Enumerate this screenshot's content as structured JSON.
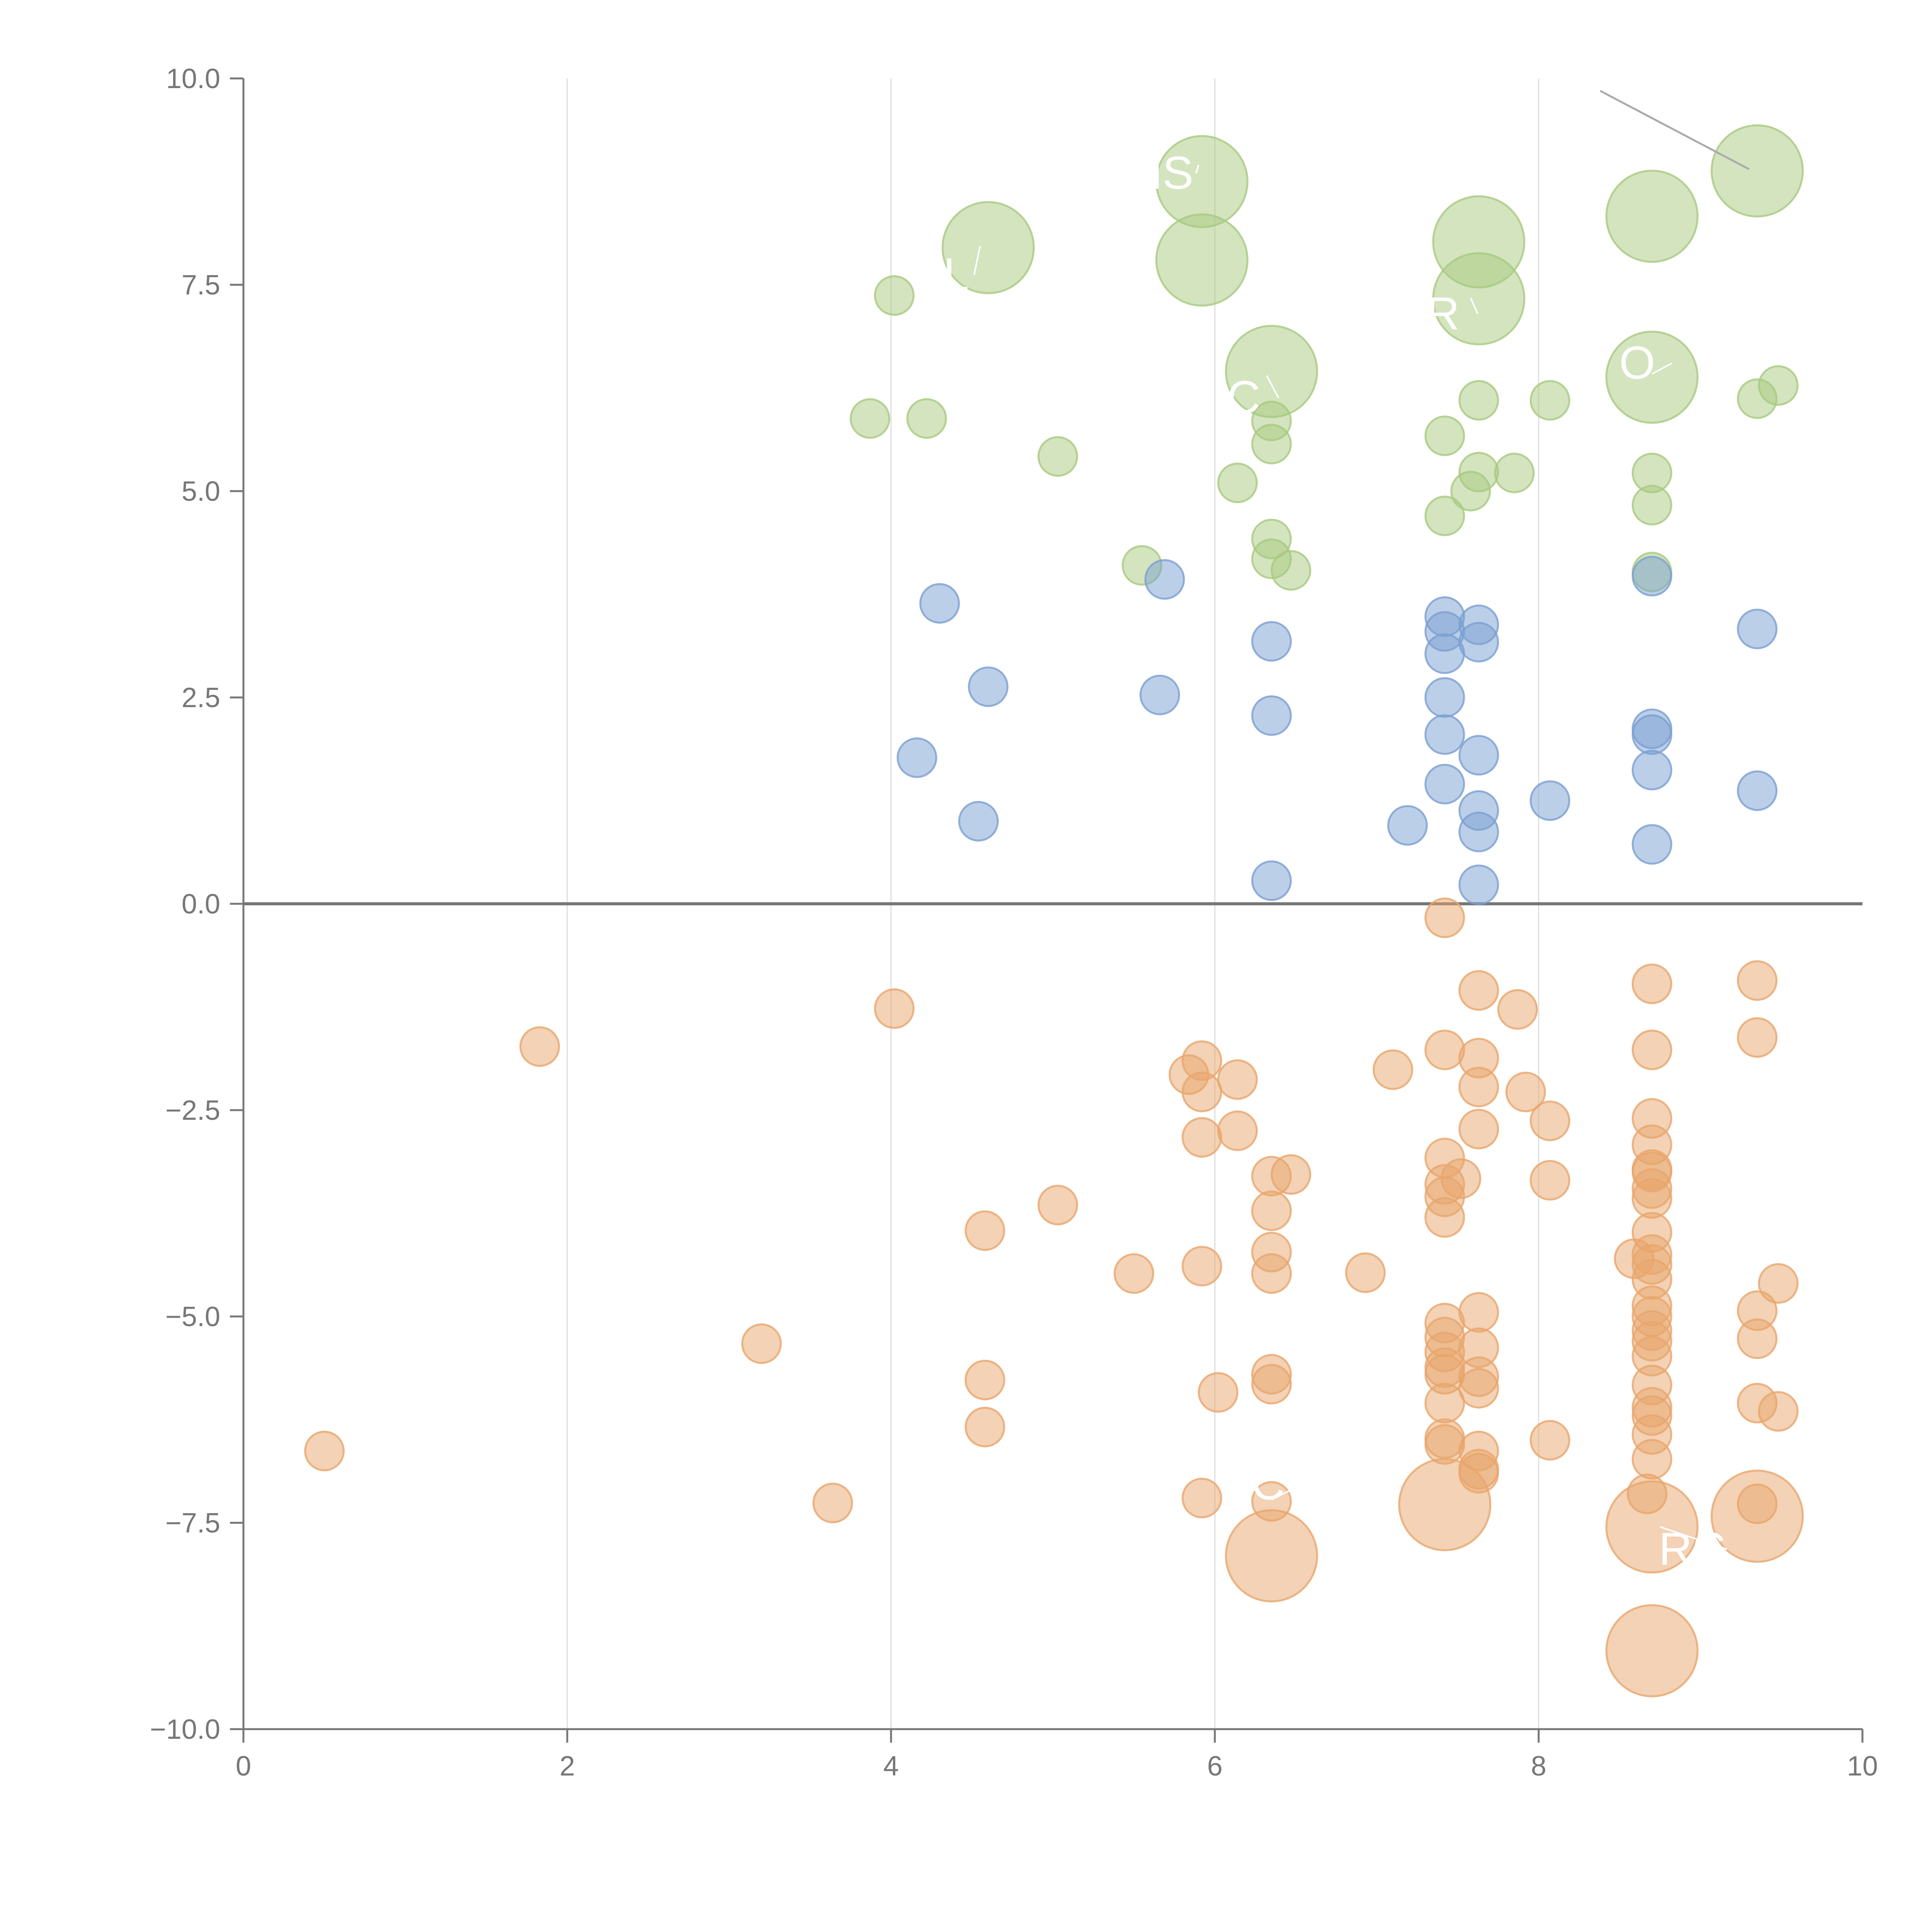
{
  "chart_data": {
    "type": "scatter",
    "title": "",
    "xlabel": "",
    "ylabel": "",
    "xlim": [
      0,
      10
    ],
    "ylim": [
      -10,
      10
    ],
    "x_ticks": [
      "0",
      "2",
      "4",
      "6",
      "8",
      "10"
    ],
    "y_ticks": [
      "10.0",
      "7.5",
      "5.0",
      "2.5",
      "0.0",
      "−2.5",
      "−5.0",
      "−7.5",
      "−10.0"
    ],
    "grid": "vertical",
    "colors": {
      "green": "#a8c97f",
      "blue": "#7a9fd1",
      "orange": "#e8a56b"
    },
    "series": [
      {
        "name": "green",
        "points": [
          [
            4.02,
            7.37,
            1
          ],
          [
            4.6,
            7.95,
            3
          ],
          [
            5.92,
            8.75,
            3
          ],
          [
            5.92,
            7.8,
            3
          ],
          [
            3.87,
            5.88,
            1
          ],
          [
            4.22,
            5.88,
            1
          ],
          [
            5.03,
            5.42,
            1
          ],
          [
            5.55,
            4.1,
            1
          ],
          [
            6.14,
            5.1,
            1
          ],
          [
            6.35,
            6.45,
            3
          ],
          [
            6.35,
            5.85,
            1
          ],
          [
            6.35,
            5.57,
            1
          ],
          [
            6.35,
            4.42,
            1
          ],
          [
            6.35,
            4.18,
            1
          ],
          [
            6.47,
            4.04,
            1
          ],
          [
            7.42,
            5.67,
            1
          ],
          [
            7.42,
            4.7,
            1
          ],
          [
            7.58,
            5.0,
            1
          ],
          [
            7.63,
            5.23,
            1
          ],
          [
            7.85,
            5.22,
            1
          ],
          [
            7.63,
            8.02,
            3
          ],
          [
            7.63,
            7.33,
            3
          ],
          [
            7.63,
            6.1,
            1
          ],
          [
            8.07,
            6.1,
            1
          ],
          [
            8.7,
            8.33,
            3
          ],
          [
            8.7,
            6.38,
            3
          ],
          [
            8.7,
            5.22,
            1
          ],
          [
            8.7,
            4.83,
            1
          ],
          [
            8.7,
            4.02,
            1
          ],
          [
            9.35,
            8.88,
            3
          ],
          [
            9.35,
            6.12,
            1
          ],
          [
            9.48,
            6.28,
            1
          ]
        ]
      },
      {
        "name": "blue",
        "points": [
          [
            4.3,
            3.64,
            1
          ],
          [
            4.6,
            2.63,
            1
          ],
          [
            4.16,
            1.77,
            1
          ],
          [
            4.54,
            1.0,
            1
          ],
          [
            5.69,
            3.93,
            1
          ],
          [
            5.66,
            2.53,
            1
          ],
          [
            6.35,
            3.18,
            1
          ],
          [
            6.35,
            2.28,
            1
          ],
          [
            6.35,
            0.28,
            1
          ],
          [
            7.19,
            0.95,
            1
          ],
          [
            7.42,
            3.48,
            1
          ],
          [
            7.42,
            3.3,
            1
          ],
          [
            7.42,
            3.03,
            1
          ],
          [
            7.42,
            2.5,
            1
          ],
          [
            7.42,
            2.05,
            1
          ],
          [
            7.42,
            1.45,
            1
          ],
          [
            7.63,
            3.38,
            1
          ],
          [
            7.63,
            3.17,
            1
          ],
          [
            7.63,
            1.8,
            1
          ],
          [
            7.63,
            1.13,
            1
          ],
          [
            7.63,
            0.87,
            1
          ],
          [
            7.63,
            0.23,
            1
          ],
          [
            8.07,
            1.25,
            1
          ],
          [
            8.7,
            3.97,
            1
          ],
          [
            8.7,
            2.12,
            1
          ],
          [
            8.7,
            2.05,
            1
          ],
          [
            8.7,
            1.62,
            1
          ],
          [
            8.7,
            0.72,
            1
          ],
          [
            9.35,
            3.33,
            1
          ],
          [
            9.35,
            1.37,
            1
          ]
        ]
      },
      {
        "name": "orange",
        "points": [
          [
            0.5,
            -6.63,
            1
          ],
          [
            1.83,
            -1.73,
            1
          ],
          [
            3.2,
            -5.33,
            1
          ],
          [
            3.64,
            -7.26,
            1
          ],
          [
            4.02,
            -1.27,
            1
          ],
          [
            4.58,
            -3.96,
            1
          ],
          [
            4.58,
            -5.77,
            1
          ],
          [
            4.58,
            -6.34,
            1
          ],
          [
            5.03,
            -3.65,
            1
          ],
          [
            5.5,
            -4.48,
            1
          ],
          [
            5.92,
            -1.9,
            1
          ],
          [
            5.84,
            -2.07,
            1
          ],
          [
            5.92,
            -2.28,
            1
          ],
          [
            5.92,
            -2.83,
            1
          ],
          [
            5.92,
            -4.39,
            1
          ],
          [
            5.92,
            -7.2,
            1
          ],
          [
            6.14,
            -2.13,
            1
          ],
          [
            6.14,
            -2.75,
            1
          ],
          [
            6.02,
            -5.92,
            1
          ],
          [
            6.35,
            -3.3,
            1
          ],
          [
            6.47,
            -3.28,
            1
          ],
          [
            6.35,
            -3.72,
            1
          ],
          [
            6.35,
            -4.22,
            1
          ],
          [
            6.35,
            -4.48,
            1
          ],
          [
            6.35,
            -5.7,
            1
          ],
          [
            6.35,
            -5.82,
            1
          ],
          [
            6.35,
            -7.24,
            1
          ],
          [
            6.35,
            -7.9,
            3
          ],
          [
            6.93,
            -4.47,
            1
          ],
          [
            7.1,
            -2.01,
            1
          ],
          [
            7.42,
            -0.17,
            1
          ],
          [
            7.42,
            -1.77,
            1
          ],
          [
            7.42,
            -3.08,
            1
          ],
          [
            7.52,
            -3.33,
            1
          ],
          [
            7.42,
            -3.4,
            1
          ],
          [
            7.42,
            -3.55,
            1
          ],
          [
            7.42,
            -3.8,
            1
          ],
          [
            7.42,
            -5.08,
            1
          ],
          [
            7.42,
            -5.25,
            1
          ],
          [
            7.42,
            -5.43,
            1
          ],
          [
            7.42,
            -5.62,
            1
          ],
          [
            7.42,
            -5.7,
            1
          ],
          [
            7.42,
            -6.05,
            1
          ],
          [
            7.42,
            -6.48,
            1
          ],
          [
            7.42,
            -6.55,
            1
          ],
          [
            7.42,
            -7.28,
            3
          ],
          [
            7.63,
            -1.05,
            1
          ],
          [
            7.63,
            -1.87,
            1
          ],
          [
            7.63,
            -2.22,
            1
          ],
          [
            7.63,
            -2.73,
            1
          ],
          [
            7.63,
            -4.95,
            1
          ],
          [
            7.63,
            -5.38,
            1
          ],
          [
            7.63,
            -5.73,
            1
          ],
          [
            7.63,
            -5.87,
            1
          ],
          [
            7.63,
            -6.63,
            1
          ],
          [
            7.63,
            -6.85,
            1
          ],
          [
            7.63,
            -6.9,
            1
          ],
          [
            7.87,
            -1.28,
            1
          ],
          [
            7.92,
            -2.28,
            1
          ],
          [
            8.07,
            -2.63,
            1
          ],
          [
            8.07,
            -3.35,
            1
          ],
          [
            8.07,
            -6.5,
            1
          ],
          [
            8.7,
            -0.97,
            1
          ],
          [
            8.7,
            -1.77,
            1
          ],
          [
            8.7,
            -2.6,
            1
          ],
          [
            8.7,
            -2.92,
            1
          ],
          [
            8.7,
            -3.22,
            1
          ],
          [
            8.7,
            -3.25,
            1
          ],
          [
            8.7,
            -3.45,
            1
          ],
          [
            8.7,
            -3.57,
            1
          ],
          [
            8.7,
            -3.98,
            1
          ],
          [
            8.7,
            -4.25,
            1
          ],
          [
            8.59,
            -4.3,
            1
          ],
          [
            8.7,
            -4.37,
            1
          ],
          [
            8.7,
            -4.55,
            1
          ],
          [
            8.7,
            -4.87,
            1
          ],
          [
            8.7,
            -5.0,
            1
          ],
          [
            8.7,
            -5.17,
            1
          ],
          [
            8.7,
            -5.3,
            1
          ],
          [
            8.7,
            -5.48,
            1
          ],
          [
            8.7,
            -5.83,
            1
          ],
          [
            8.7,
            -6.1,
            1
          ],
          [
            8.7,
            -6.2,
            1
          ],
          [
            8.7,
            -6.43,
            1
          ],
          [
            8.7,
            -6.73,
            1
          ],
          [
            8.67,
            -7.15,
            1
          ],
          [
            8.7,
            -7.55,
            3
          ],
          [
            8.7,
            -9.05,
            3
          ],
          [
            9.35,
            -0.93,
            1
          ],
          [
            9.35,
            -1.62,
            1
          ],
          [
            9.35,
            -4.93,
            1
          ],
          [
            9.35,
            -5.27,
            1
          ],
          [
            9.35,
            -6.05,
            1
          ],
          [
            9.48,
            -6.15,
            1
          ],
          [
            9.48,
            -4.6,
            1
          ],
          [
            9.35,
            -7.27,
            1
          ],
          [
            9.35,
            -7.42,
            3
          ]
        ]
      }
    ],
    "annotations": [
      {
        "text": "NS",
        "x": 5.74,
        "y": 8.85,
        "tx": 5.9,
        "ty": 8.95
      },
      {
        "text": "CL",
        "x": 4.37,
        "y": 7.62,
        "tx": 4.55,
        "ty": 7.97
      },
      {
        "text": "R",
        "x": 7.48,
        "y": 7.15,
        "tx": 7.58,
        "ty": 7.34
      },
      {
        "text": "C",
        "x": 6.25,
        "y": 6.13,
        "tx": 6.32,
        "ty": 6.4
      },
      {
        "text": "O",
        "x": 8.68,
        "y": 6.55,
        "tx": 8.7,
        "ty": 6.42
      },
      {
        "text": "C",
        "x": 6.4,
        "y": -7.03,
        "tx": 6.35,
        "ty": -7.22
      },
      {
        "text": "RC",
        "x": 9.02,
        "y": -7.82,
        "tx": 8.75,
        "ty": -7.55
      }
    ]
  }
}
